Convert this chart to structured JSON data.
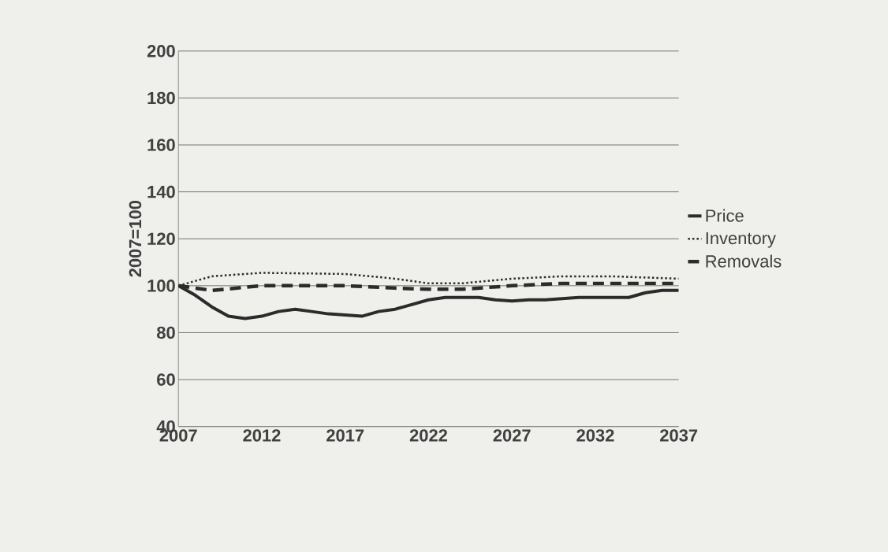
{
  "chart_data": {
    "type": "line",
    "ylabel": "2007=100",
    "xlim": [
      2007,
      2037
    ],
    "xticks": [
      2007,
      2012,
      2017,
      2022,
      2027,
      2032,
      2037
    ],
    "ylim": [
      40,
      200
    ],
    "yticks": [
      40,
      60,
      80,
      100,
      120,
      140,
      160,
      180,
      200
    ],
    "grid": "y",
    "legend": "right",
    "marker": "none",
    "series": [
      {
        "name": "Price",
        "color": "#2b2b2b",
        "line_style": "solid",
        "x": [
          2007,
          2008,
          2009,
          2010,
          2011,
          2012,
          2013,
          2014,
          2015,
          2016,
          2017,
          2018,
          2019,
          2020,
          2021,
          2022,
          2023,
          2024,
          2025,
          2026,
          2027,
          2028,
          2029,
          2030,
          2031,
          2032,
          2033,
          2034,
          2035,
          2036,
          2037
        ],
        "values": [
          100,
          96,
          91,
          87,
          86,
          87,
          89,
          90,
          89,
          88,
          87.5,
          87,
          89,
          90,
          92,
          94,
          95,
          95,
          95,
          94,
          93.5,
          94,
          94,
          94.5,
          95,
          95,
          95,
          95,
          97,
          98,
          98
        ]
      },
      {
        "name": "Inventory",
        "color": "#2b2b2b",
        "line_style": "dotted",
        "x": [
          2007,
          2009,
          2012,
          2017,
          2020,
          2022,
          2024,
          2027,
          2030,
          2033,
          2037
        ],
        "values": [
          100,
          104,
          105.5,
          105,
          103,
          101,
          101,
          103,
          104,
          104,
          103
        ]
      },
      {
        "name": "Removals",
        "color": "#2b2b2b",
        "line_style": "dashed",
        "x": [
          2007,
          2009,
          2012,
          2015,
          2017,
          2020,
          2022,
          2024,
          2027,
          2030,
          2033,
          2037
        ],
        "values": [
          100,
          98,
          100,
          100,
          100,
          99,
          98.5,
          98.5,
          100,
          101,
          101,
          101
        ]
      }
    ]
  }
}
